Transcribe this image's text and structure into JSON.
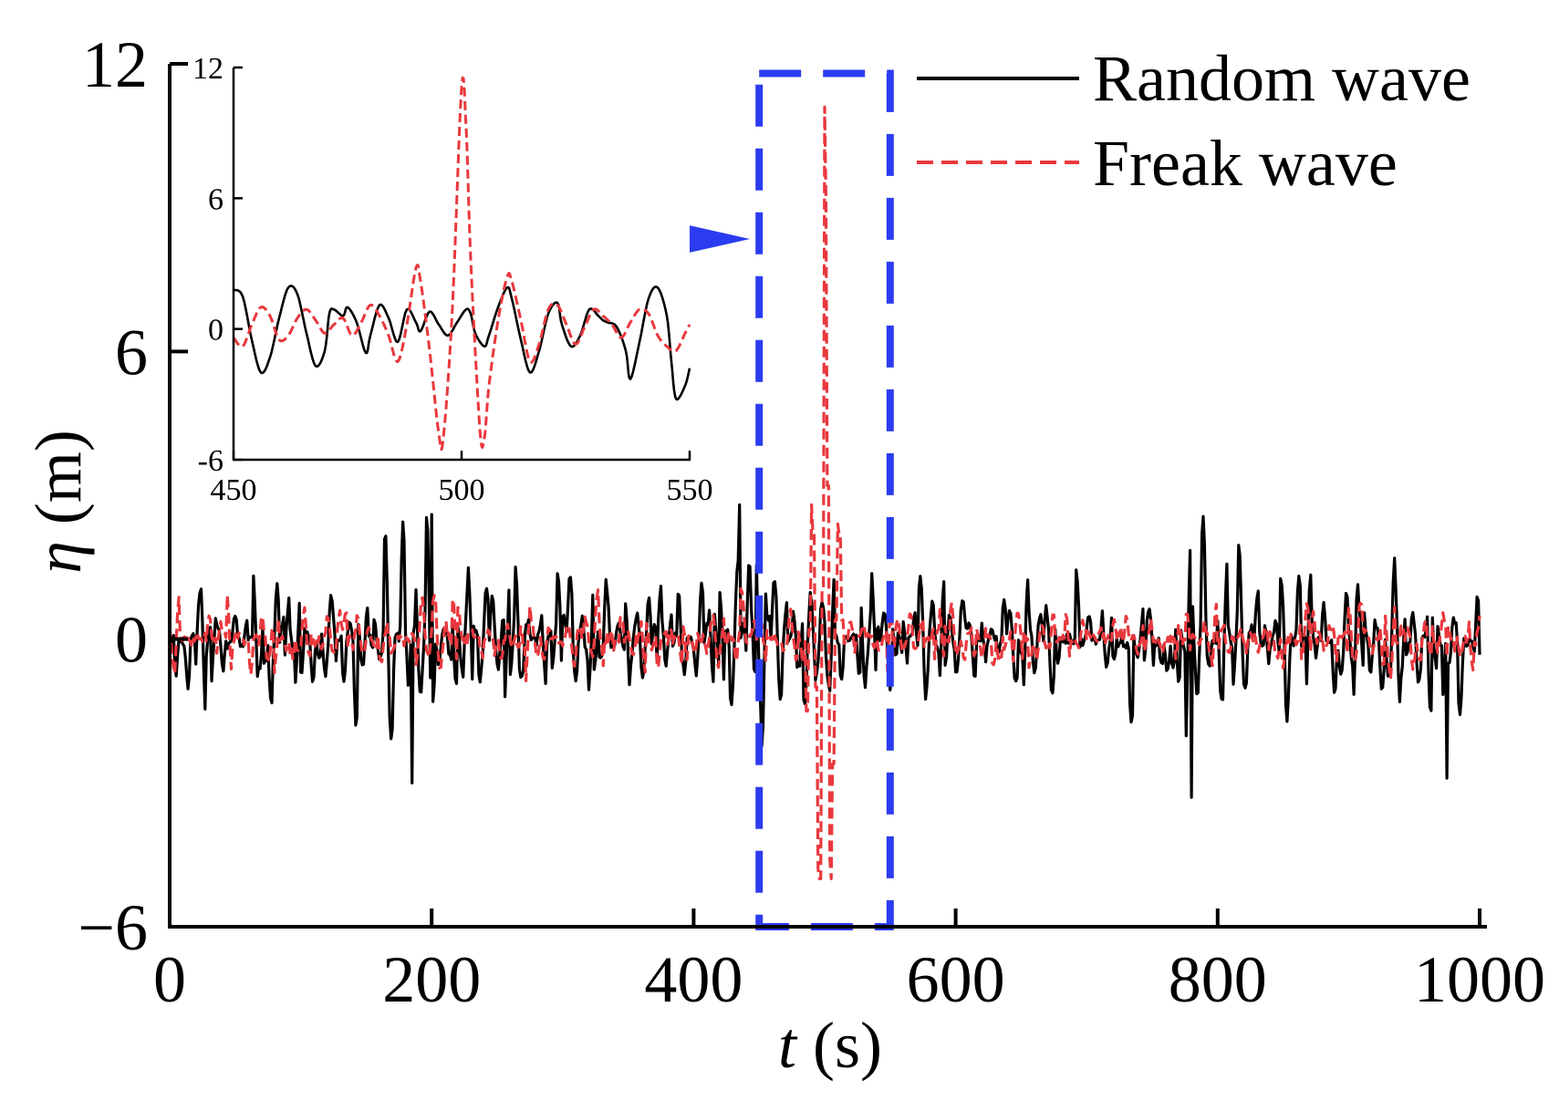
{
  "chart_data": {
    "type": "line",
    "title": "",
    "xlabel_symbol": "t",
    "xlabel_unit": "(s)",
    "ylabel_symbol": "η",
    "ylabel_unit": "(m)",
    "xlim": [
      0,
      1000
    ],
    "ylim": [
      -6,
      12
    ],
    "x_ticks": [
      0,
      200,
      400,
      600,
      800,
      1000
    ],
    "x_tick_labels": [
      "0",
      "200",
      "400",
      "600",
      "800",
      "1000"
    ],
    "y_ticks": [
      -6,
      0,
      6,
      12
    ],
    "y_tick_labels": [
      "−6",
      "0",
      "6",
      "12"
    ],
    "grid": false,
    "legend_position": "top-right",
    "series": [
      {
        "name": "Random wave",
        "color": "#000000",
        "style": "solid",
        "description": "irregular wave elevation oscillating roughly between -3.2 m and 2.8 m",
        "approx_min": -3.2,
        "approx_max": 2.8,
        "notable_points": [
          {
            "x": 185,
            "y": -3.0
          },
          {
            "x": 200,
            "y": 2.6
          },
          {
            "x": 435,
            "y": 2.8
          },
          {
            "x": 780,
            "y": -3.3
          },
          {
            "x": 975,
            "y": -2.9
          }
        ]
      },
      {
        "name": "Freak wave",
        "color": "#e8383d",
        "style": "dashed",
        "description": "irregular wave elevation with a single extreme crest near t = 500 s",
        "approx_min": -5.2,
        "approx_max": 11.0,
        "notable_points": [
          {
            "x": 494,
            "y": -5.2
          },
          {
            "x": 500,
            "y": 11.0
          },
          {
            "x": 505,
            "y": -5.0
          }
        ]
      }
    ],
    "annotations": {
      "highlight_box": {
        "x_range": [
          450,
          550
        ],
        "y_range": [
          -6,
          11.8
        ],
        "color": "#2b3cf0",
        "style": "dotted"
      },
      "arrow": {
        "color": "#2b3cf0",
        "direction": "right"
      }
    },
    "inset": {
      "type": "line",
      "xlim": [
        450,
        550
      ],
      "ylim": [
        -6,
        12
      ],
      "x_ticks": [
        450,
        500,
        550
      ],
      "x_tick_labels": [
        "450",
        "500",
        "550"
      ],
      "y_ticks": [
        -6,
        0,
        6,
        12
      ],
      "y_tick_labels": [
        "-6",
        "0",
        "6",
        "12"
      ],
      "random_wave": [
        [
          450,
          1.8
        ],
        [
          452,
          1.5
        ],
        [
          454,
          -0.5
        ],
        [
          456,
          -2.0
        ],
        [
          458,
          -1.3
        ],
        [
          460,
          0.5
        ],
        [
          462,
          1.9
        ],
        [
          464,
          1.6
        ],
        [
          466,
          -0.2
        ],
        [
          468,
          -1.7
        ],
        [
          470,
          -1.0
        ],
        [
          471,
          0.7
        ],
        [
          472,
          0.9
        ],
        [
          474,
          0.6
        ],
        [
          475,
          1.0
        ],
        [
          477,
          0.3
        ],
        [
          479,
          -1.1
        ],
        [
          480,
          -0.3
        ],
        [
          482,
          1.1
        ],
        [
          484,
          0.5
        ],
        [
          486,
          -0.6
        ],
        [
          488,
          0.9
        ],
        [
          490,
          0.3
        ],
        [
          491,
          -0.1
        ],
        [
          493,
          0.8
        ],
        [
          495,
          0.2
        ],
        [
          497,
          -0.3
        ],
        [
          499,
          0.3
        ],
        [
          501,
          0.9
        ],
        [
          502,
          0.7
        ],
        [
          503,
          -0.2
        ],
        [
          505,
          -0.8
        ],
        [
          506,
          -0.3
        ],
        [
          508,
          1.0
        ],
        [
          510,
          1.9
        ],
        [
          511,
          1.4
        ],
        [
          513,
          -0.5
        ],
        [
          515,
          -2.0
        ],
        [
          517,
          -1.0
        ],
        [
          519,
          0.7
        ],
        [
          521,
          1.2
        ],
        [
          522,
          0.2
        ],
        [
          524,
          -0.8
        ],
        [
          526,
          -0.3
        ],
        [
          528,
          0.9
        ],
        [
          530,
          0.6
        ],
        [
          531,
          0.4
        ],
        [
          532,
          0.3
        ],
        [
          534,
          0.1
        ],
        [
          536,
          -1.0
        ],
        [
          537,
          -2.3
        ],
        [
          539,
          -0.6
        ],
        [
          541,
          1.4
        ],
        [
          543,
          1.9
        ],
        [
          545,
          0.6
        ],
        [
          546,
          -1.5
        ],
        [
          547,
          -3.2
        ],
        [
          549,
          -2.6
        ],
        [
          550,
          -1.8
        ]
      ],
      "freak_wave": [
        [
          450,
          -0.4
        ],
        [
          452,
          -0.8
        ],
        [
          454,
          0.2
        ],
        [
          456,
          1.0
        ],
        [
          458,
          0.6
        ],
        [
          460,
          -0.5
        ],
        [
          462,
          -0.3
        ],
        [
          464,
          0.5
        ],
        [
          466,
          0.9
        ],
        [
          468,
          0.4
        ],
        [
          470,
          -0.2
        ],
        [
          472,
          0.2
        ],
        [
          474,
          0.5
        ],
        [
          476,
          -0.3
        ],
        [
          478,
          0.3
        ],
        [
          480,
          1.1
        ],
        [
          482,
          0.6
        ],
        [
          484,
          -0.3
        ],
        [
          486,
          -1.5
        ],
        [
          488,
          0.2
        ],
        [
          490,
          2.8
        ],
        [
          491,
          2.2
        ],
        [
          493,
          -1.0
        ],
        [
          495,
          -4.8
        ],
        [
          496,
          -5.0
        ],
        [
          498,
          1.0
        ],
        [
          500,
          11.1
        ],
        [
          501,
          9.2
        ],
        [
          502,
          3.2
        ],
        [
          504,
          -4.6
        ],
        [
          505,
          -5.0
        ],
        [
          506,
          -2.6
        ],
        [
          508,
          0.4
        ],
        [
          510,
          2.4
        ],
        [
          511,
          2.2
        ],
        [
          513,
          0.4
        ],
        [
          515,
          -1.5
        ],
        [
          517,
          -0.7
        ],
        [
          519,
          0.9
        ],
        [
          521,
          1.1
        ],
        [
          523,
          0.2
        ],
        [
          525,
          -0.7
        ],
        [
          527,
          0.1
        ],
        [
          529,
          0.9
        ],
        [
          531,
          0.6
        ],
        [
          533,
          0.2
        ],
        [
          535,
          -0.4
        ],
        [
          537,
          0.3
        ],
        [
          539,
          0.9
        ],
        [
          541,
          0.7
        ],
        [
          543,
          -0.3
        ],
        [
          545,
          -0.8
        ],
        [
          547,
          -1.0
        ],
        [
          549,
          -0.2
        ],
        [
          550,
          0.2
        ]
      ]
    }
  }
}
